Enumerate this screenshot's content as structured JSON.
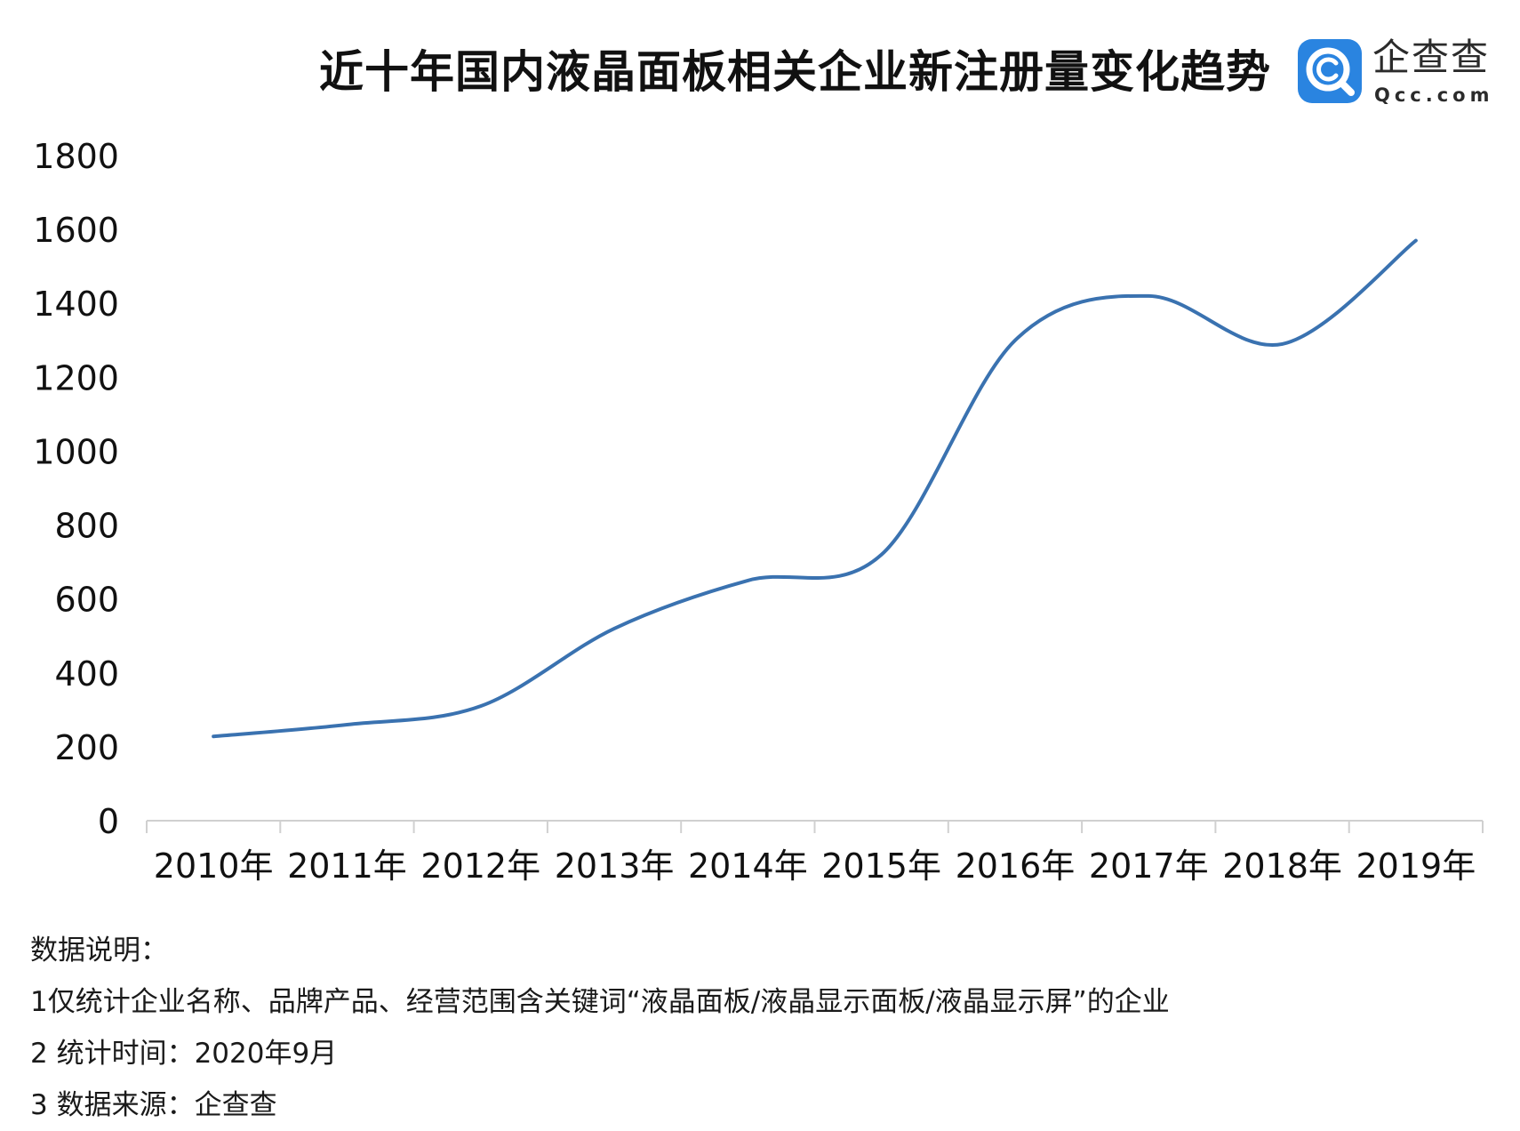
{
  "header": {
    "title": "近十年国内液晶面板相关企业新注册量变化趋势"
  },
  "logo": {
    "icon": "qcc-magnifier-icon",
    "brand": "企查查",
    "domain": "Qcc.com",
    "color": "#2a84e0"
  },
  "chart_data": {
    "type": "line",
    "title": "近十年国内液晶面板相关企业新注册量变化趋势",
    "xlabel": "",
    "ylabel": "",
    "categories": [
      "2010年",
      "2011年",
      "2012年",
      "2013年",
      "2014年",
      "2015年",
      "2016年",
      "2017年",
      "2018年",
      "2019年"
    ],
    "series": [
      {
        "values": [
          228,
          260,
          310,
          520,
          650,
          720,
          1300,
          1420,
          1290,
          1570
        ],
        "color": "#3a72b0"
      }
    ],
    "ylim": [
      0,
      1800
    ],
    "yticks": [
      0,
      200,
      400,
      600,
      800,
      1000,
      1200,
      1400,
      1600,
      1800
    ],
    "smooth": true,
    "grid": false,
    "legend": "none"
  },
  "notes": {
    "heading": "数据说明：",
    "items": [
      "1仅统计企业名称、品牌产品、经营范围含关键词“液晶面板/液晶显示面板/液晶显示屏”的企业",
      "2 统计时间：2020年9月",
      "3 数据来源：企查查"
    ]
  }
}
